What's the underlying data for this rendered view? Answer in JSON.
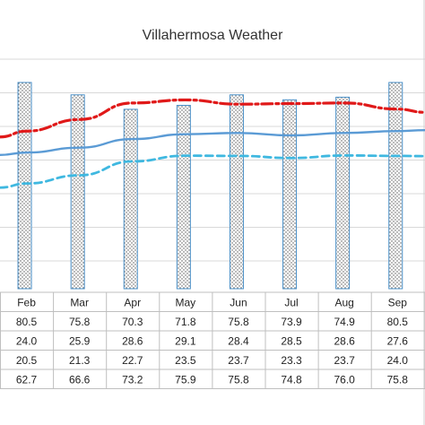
{
  "chart_data": {
    "type": "bar",
    "title": "Villahermosa Weather",
    "categories": [
      "Feb",
      "Mar",
      "Apr",
      "May",
      "Jun",
      "Jul",
      "Aug",
      "Sep"
    ],
    "series": [
      {
        "kind": "bar",
        "values": [
          80.5,
          75.8,
          70.3,
          71.8,
          75.8,
          73.9,
          74.9,
          80.5
        ]
      },
      {
        "kind": "line-dash-dot",
        "color": "#e01919",
        "values": [
          24.0,
          25.9,
          28.6,
          29.1,
          28.4,
          28.5,
          28.6,
          27.6
        ]
      },
      {
        "kind": "line-solid",
        "color": "#5b9bd5",
        "values": [
          20.5,
          21.3,
          22.7,
          23.5,
          23.7,
          23.3,
          23.7,
          24.0
        ]
      },
      {
        "kind": "line-dashed",
        "color": "#3fb8e0",
        "values": [
          62.7,
          66.6,
          73.2,
          75.9,
          75.8,
          74.8,
          76.0,
          75.8
        ]
      }
    ],
    "grid": true,
    "legend": "none"
  },
  "table": {
    "rows": [
      [
        "80.5",
        "75.8",
        "70.3",
        "71.8",
        "75.8",
        "73.9",
        "74.9",
        "80.5"
      ],
      [
        "24.0",
        "25.9",
        "28.6",
        "29.1",
        "28.4",
        "28.5",
        "28.6",
        "27.6"
      ],
      [
        "20.5",
        "21.3",
        "22.7",
        "23.5",
        "23.7",
        "23.3",
        "23.7",
        "24.0"
      ],
      [
        "62.7",
        "66.6",
        "73.2",
        "75.9",
        "75.8",
        "74.8",
        "76.0",
        "75.8"
      ]
    ]
  }
}
